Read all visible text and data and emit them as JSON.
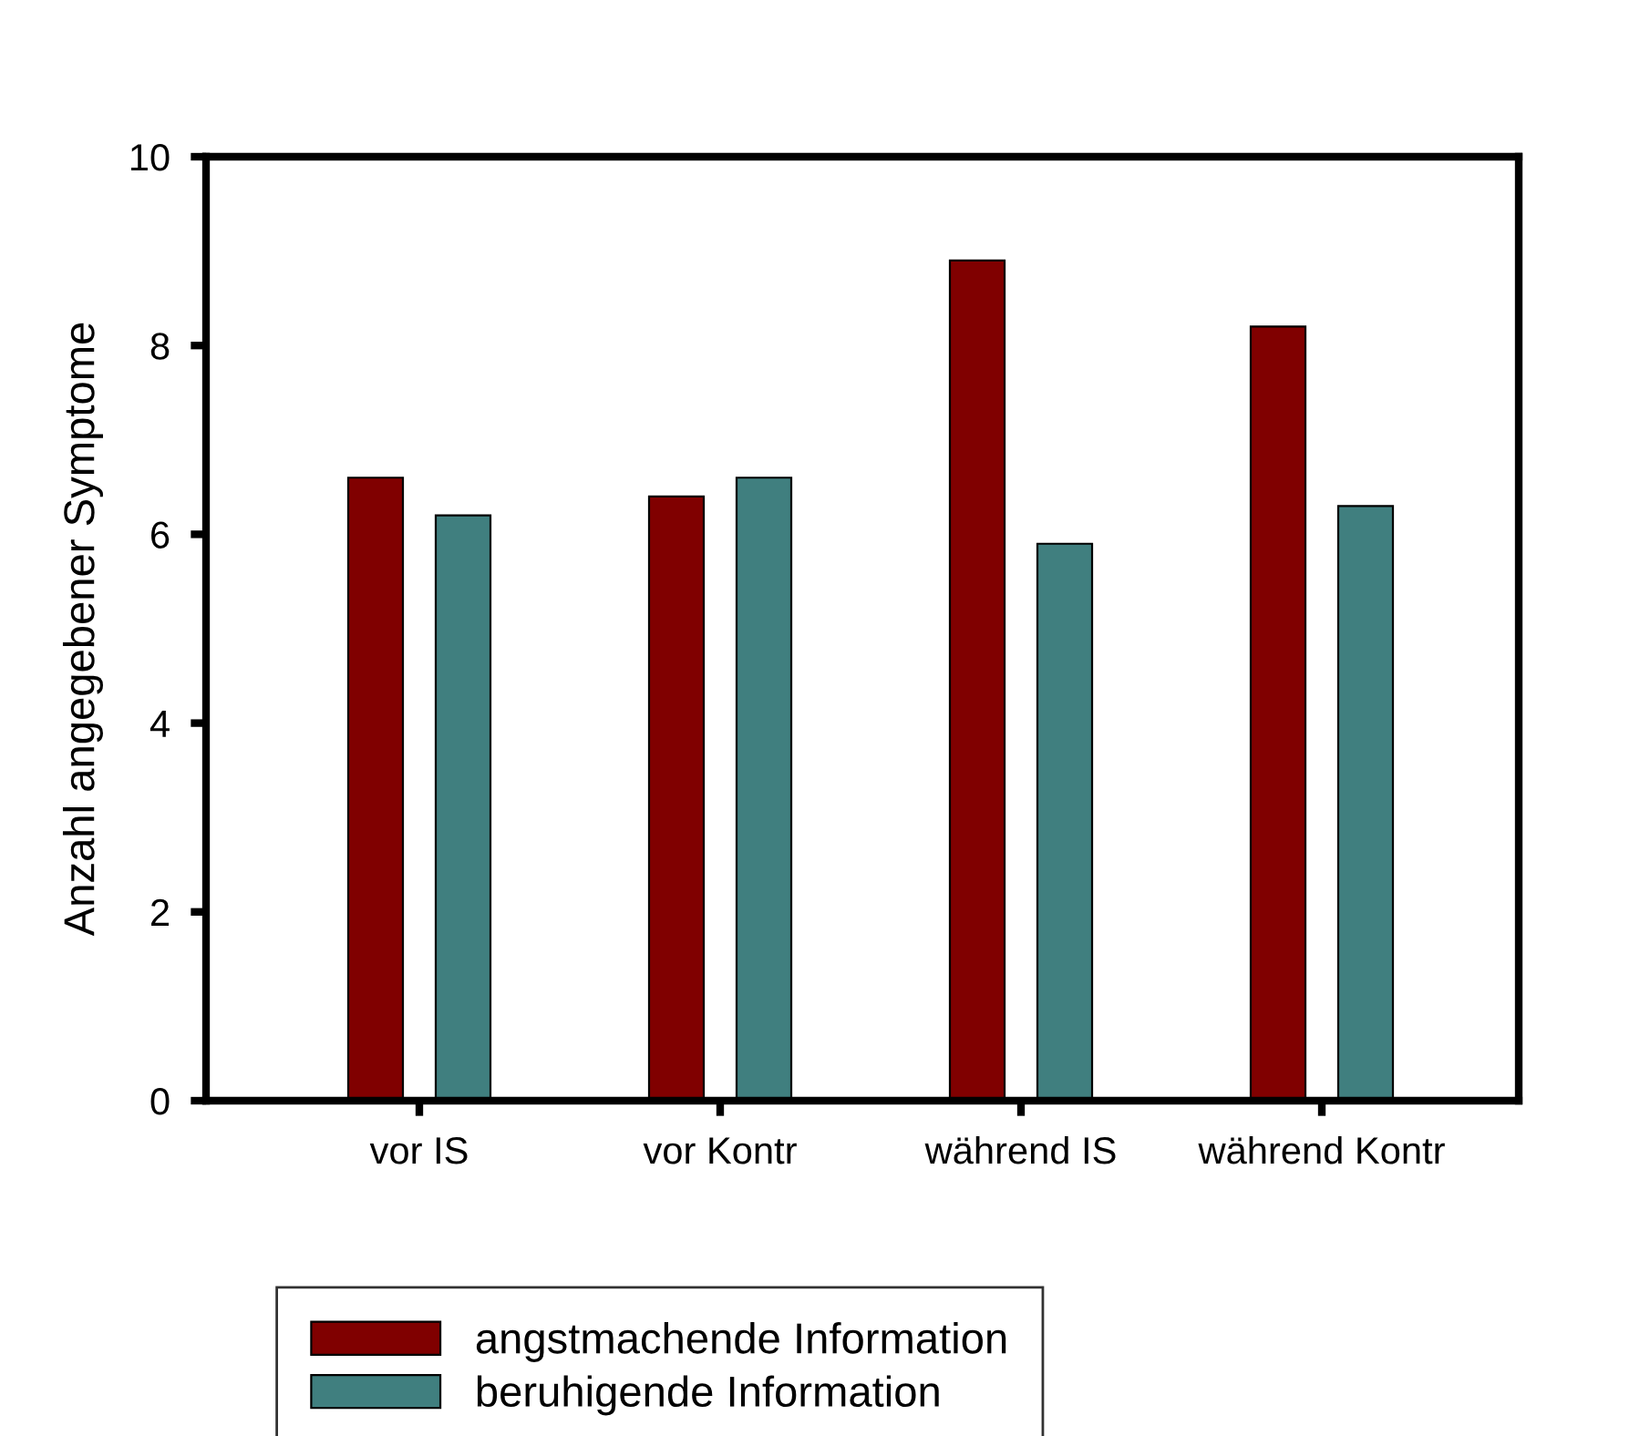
{
  "chart_data": {
    "type": "bar",
    "ylabel": "Anzahl angegebener Symptome",
    "categories": [
      "vor IS",
      "vor Kontr",
      "während IS",
      "während Kontr"
    ],
    "series": [
      {
        "name": "angstmachende Information",
        "color": "#800000",
        "values": [
          6.6,
          6.4,
          8.9,
          8.2
        ]
      },
      {
        "name": "beruhigende Information",
        "color": "#407f7f",
        "values": [
          6.2,
          6.6,
          5.9,
          6.3
        ]
      }
    ],
    "ylim": [
      0,
      10
    ],
    "yticks": [
      0,
      2,
      4,
      6,
      8,
      10
    ],
    "grid": false,
    "legend": "bottom"
  }
}
